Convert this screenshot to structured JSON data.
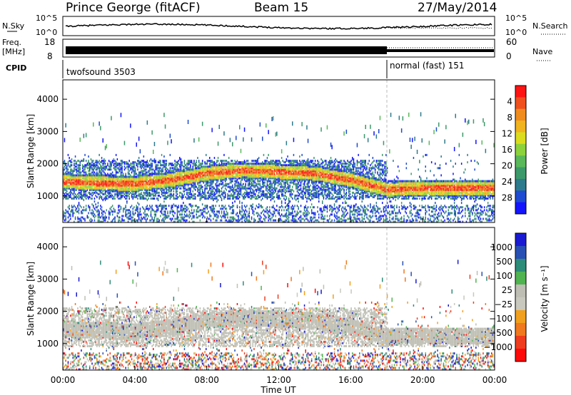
{
  "header": {
    "station": "Prince George (fitACF)",
    "beam": "Beam 15",
    "date": "27/May/2014"
  },
  "noise_panel": {
    "left_label": "N.Sky",
    "right_label": "N.Search",
    "left_ticks": [
      "10^5",
      "10^0"
    ],
    "right_ticks": [
      "10^5",
      "10^0"
    ]
  },
  "freq_panel": {
    "left_label_1": "Freq.",
    "left_label_2": "[MHz]",
    "right_label": "Nave",
    "left_ticks": [
      "18",
      "8"
    ],
    "right_ticks": [
      "60",
      "0"
    ]
  },
  "cpid_panel": {
    "label": "CPID",
    "modes": [
      {
        "name": "twofsound 3503",
        "start_hour": 0,
        "end_hour": 18
      },
      {
        "name": "normal (fast) 151",
        "start_hour": 18,
        "end_hour": 24
      }
    ]
  },
  "colors": {
    "power_scale": [
      "#1414ff",
      "#1e4bd2",
      "#2d7a8c",
      "#3c9a6a",
      "#5ab85a",
      "#8cd23c",
      "#dcdc1e",
      "#f0b41e",
      "#f08c1e",
      "#f0501e",
      "#ff1414"
    ],
    "velocity_scale": [
      "#1a1ad2",
      "#2850b4",
      "#2d8c78",
      "#50b450",
      "#bebeb4",
      "#c8c8be",
      "#f0a01e",
      "#f0781e",
      "#f03c1e",
      "#ff0a0a"
    ],
    "ground_scatter": "#bebeb4"
  },
  "chart_data": [
    {
      "type": "heatmap",
      "title": "",
      "xlabel": "",
      "ylabel": "Slant Range [km]",
      "x_ticks": [
        "00:00",
        "04:00",
        "08:00",
        "12:00",
        "16:00",
        "20:00",
        "00:00"
      ],
      "y_ticks": [
        "1000",
        "2000",
        "3000",
        "4000"
      ],
      "xlim_hours": [
        0,
        24
      ],
      "ylim_km": [
        180,
        4600
      ],
      "colorbar": {
        "label": "Power [dB]",
        "ticks": [
          "4",
          "8",
          "12",
          "16",
          "20",
          "24",
          "28"
        ],
        "range": [
          0,
          30
        ]
      },
      "main_echo_band_km": [
        {
          "hour": 0,
          "center": 1450
        },
        {
          "hour": 2,
          "center": 1400
        },
        {
          "hour": 4,
          "center": 1380
        },
        {
          "hour": 6,
          "center": 1500
        },
        {
          "hour": 8,
          "center": 1700
        },
        {
          "hour": 10,
          "center": 1800
        },
        {
          "hour": 12,
          "center": 1750
        },
        {
          "hour": 14,
          "center": 1700
        },
        {
          "hour": 16,
          "center": 1500
        },
        {
          "hour": 18,
          "center": 1200
        },
        {
          "hour": 20,
          "center": 1250
        },
        {
          "hour": 22,
          "center": 1250
        },
        {
          "hour": 24,
          "center": 1250
        }
      ]
    },
    {
      "type": "heatmap",
      "title": "",
      "xlabel": "Time UT",
      "ylabel": "Slant Range [km]",
      "x_ticks": [
        "00:00",
        "04:00",
        "08:00",
        "12:00",
        "16:00",
        "20:00",
        "00:00"
      ],
      "y_ticks": [
        "1000",
        "2000",
        "3000",
        "4000"
      ],
      "xlim_hours": [
        0,
        24
      ],
      "ylim_km": [
        180,
        4600
      ],
      "colorbar": {
        "label": "Velocity [m s⁻¹]",
        "ticks": [
          "1000",
          "500",
          "100",
          "25",
          "−25",
          "−100",
          "−500",
          "−1000"
        ],
        "range": [
          -1000,
          1000
        ]
      }
    }
  ]
}
